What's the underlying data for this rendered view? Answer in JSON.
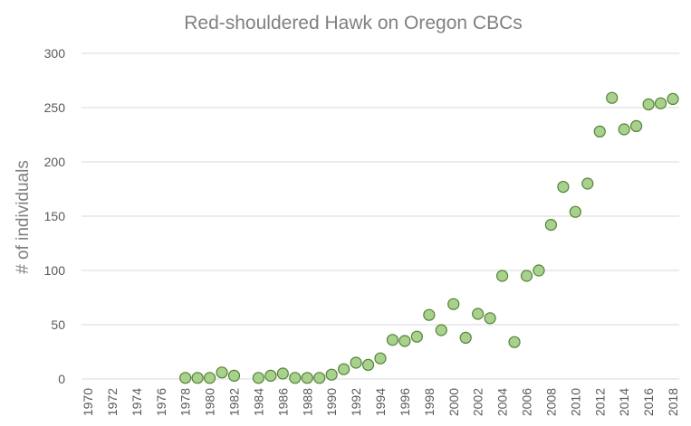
{
  "chart_data": {
    "type": "scatter",
    "title": "Red-shouldered Hawk on Oregon CBCs",
    "xlabel": "",
    "ylabel": "# of individuals",
    "xlim": [
      1970,
      2018
    ],
    "ylim": [
      0,
      300
    ],
    "xticks": [
      1970,
      1972,
      1974,
      1976,
      1978,
      1980,
      1982,
      1984,
      1986,
      1988,
      1990,
      1992,
      1994,
      1996,
      1998,
      2000,
      2002,
      2004,
      2006,
      2008,
      2010,
      2012,
      2014,
      2016,
      2018
    ],
    "yticks": [
      0,
      50,
      100,
      150,
      200,
      250,
      300
    ],
    "grid": "horizontal",
    "marker_color": "#a9d18e",
    "marker_edge": "#548235",
    "x": [
      1978,
      1979,
      1980,
      1981,
      1982,
      1984,
      1985,
      1986,
      1987,
      1988,
      1989,
      1990,
      1991,
      1992,
      1993,
      1994,
      1995,
      1996,
      1997,
      1998,
      1999,
      2000,
      2001,
      2002,
      2003,
      2004,
      2005,
      2006,
      2007,
      2008,
      2009,
      2010,
      2011,
      2012,
      2013,
      2014,
      2015,
      2016,
      2017,
      2018
    ],
    "y": [
      1,
      1,
      1,
      6,
      3,
      1,
      3,
      5,
      1,
      1,
      1,
      4,
      9,
      15,
      13,
      19,
      36,
      35,
      39,
      59,
      45,
      69,
      38,
      60,
      56,
      95,
      34,
      95,
      100,
      142,
      177,
      154,
      180,
      228,
      259,
      230,
      233,
      253,
      254,
      258
    ]
  }
}
